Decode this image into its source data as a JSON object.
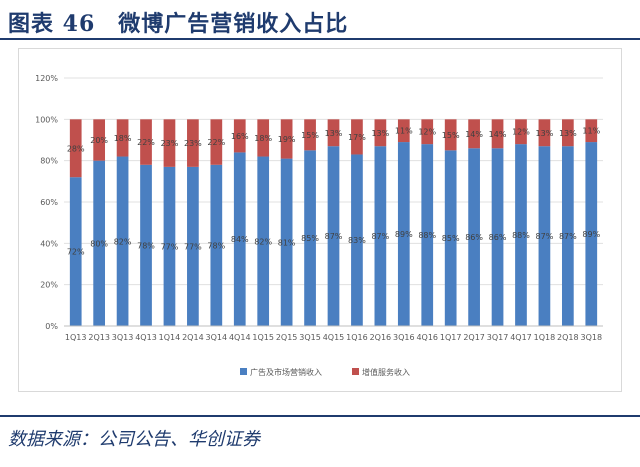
{
  "header": {
    "title": "图表 46　微博广告营销收入占比"
  },
  "footer": {
    "source": "数据来源：公司公告、华创证券"
  },
  "colors": {
    "title": "#1f3b6e",
    "series_blue": "#4a7fc1",
    "series_red": "#c0504d",
    "grid": "#e0e0e0",
    "axis_text": "#595959"
  },
  "chart_data": {
    "type": "bar",
    "stacked": true,
    "categories": [
      "1Q13",
      "2Q13",
      "3Q13",
      "4Q13",
      "1Q14",
      "2Q14",
      "3Q14",
      "4Q14",
      "1Q15",
      "2Q15",
      "3Q15",
      "4Q15",
      "1Q16",
      "2Q16",
      "3Q16",
      "4Q16",
      "1Q17",
      "2Q17",
      "3Q17",
      "4Q17",
      "1Q18",
      "2Q18",
      "3Q18"
    ],
    "series": [
      {
        "name": "广告及市场营销收入",
        "color": "#4a7fc1",
        "values": [
          72,
          80,
          82,
          78,
          77,
          77,
          78,
          84,
          82,
          81,
          85,
          87,
          83,
          87,
          89,
          88,
          85,
          86,
          86,
          88,
          87,
          87,
          89
        ],
        "labels": [
          "72%",
          "80%",
          "82%",
          "78%",
          "77%",
          "77%",
          "78%",
          "84%",
          "82%",
          "81%",
          "85%",
          "87%",
          "83%",
          "87%",
          "89%",
          "88%",
          "85%",
          "86%",
          "86%",
          "88%",
          "87%",
          "87%",
          "89%"
        ]
      },
      {
        "name": "增值服务收入",
        "color": "#c0504d",
        "values": [
          28,
          20,
          18,
          22,
          23,
          23,
          22,
          16,
          18,
          19,
          15,
          13,
          17,
          13,
          11,
          12,
          15,
          14,
          14,
          12,
          13,
          13,
          11
        ],
        "labels": [
          "28%",
          "20%",
          "18%",
          "22%",
          "23%",
          "23%",
          "22%",
          "16%",
          "18%",
          "19%",
          "15%",
          "13%",
          "17%",
          "13%",
          "11%",
          "12%",
          "15%",
          "14%",
          "14%",
          "12%",
          "13%",
          "13%",
          "11%"
        ]
      }
    ],
    "y_ticks": [
      "0%",
      "20%",
      "40%",
      "60%",
      "80%",
      "100%",
      "120%"
    ],
    "ylim": [
      0,
      120
    ],
    "grid": true,
    "legend_position": "bottom"
  }
}
